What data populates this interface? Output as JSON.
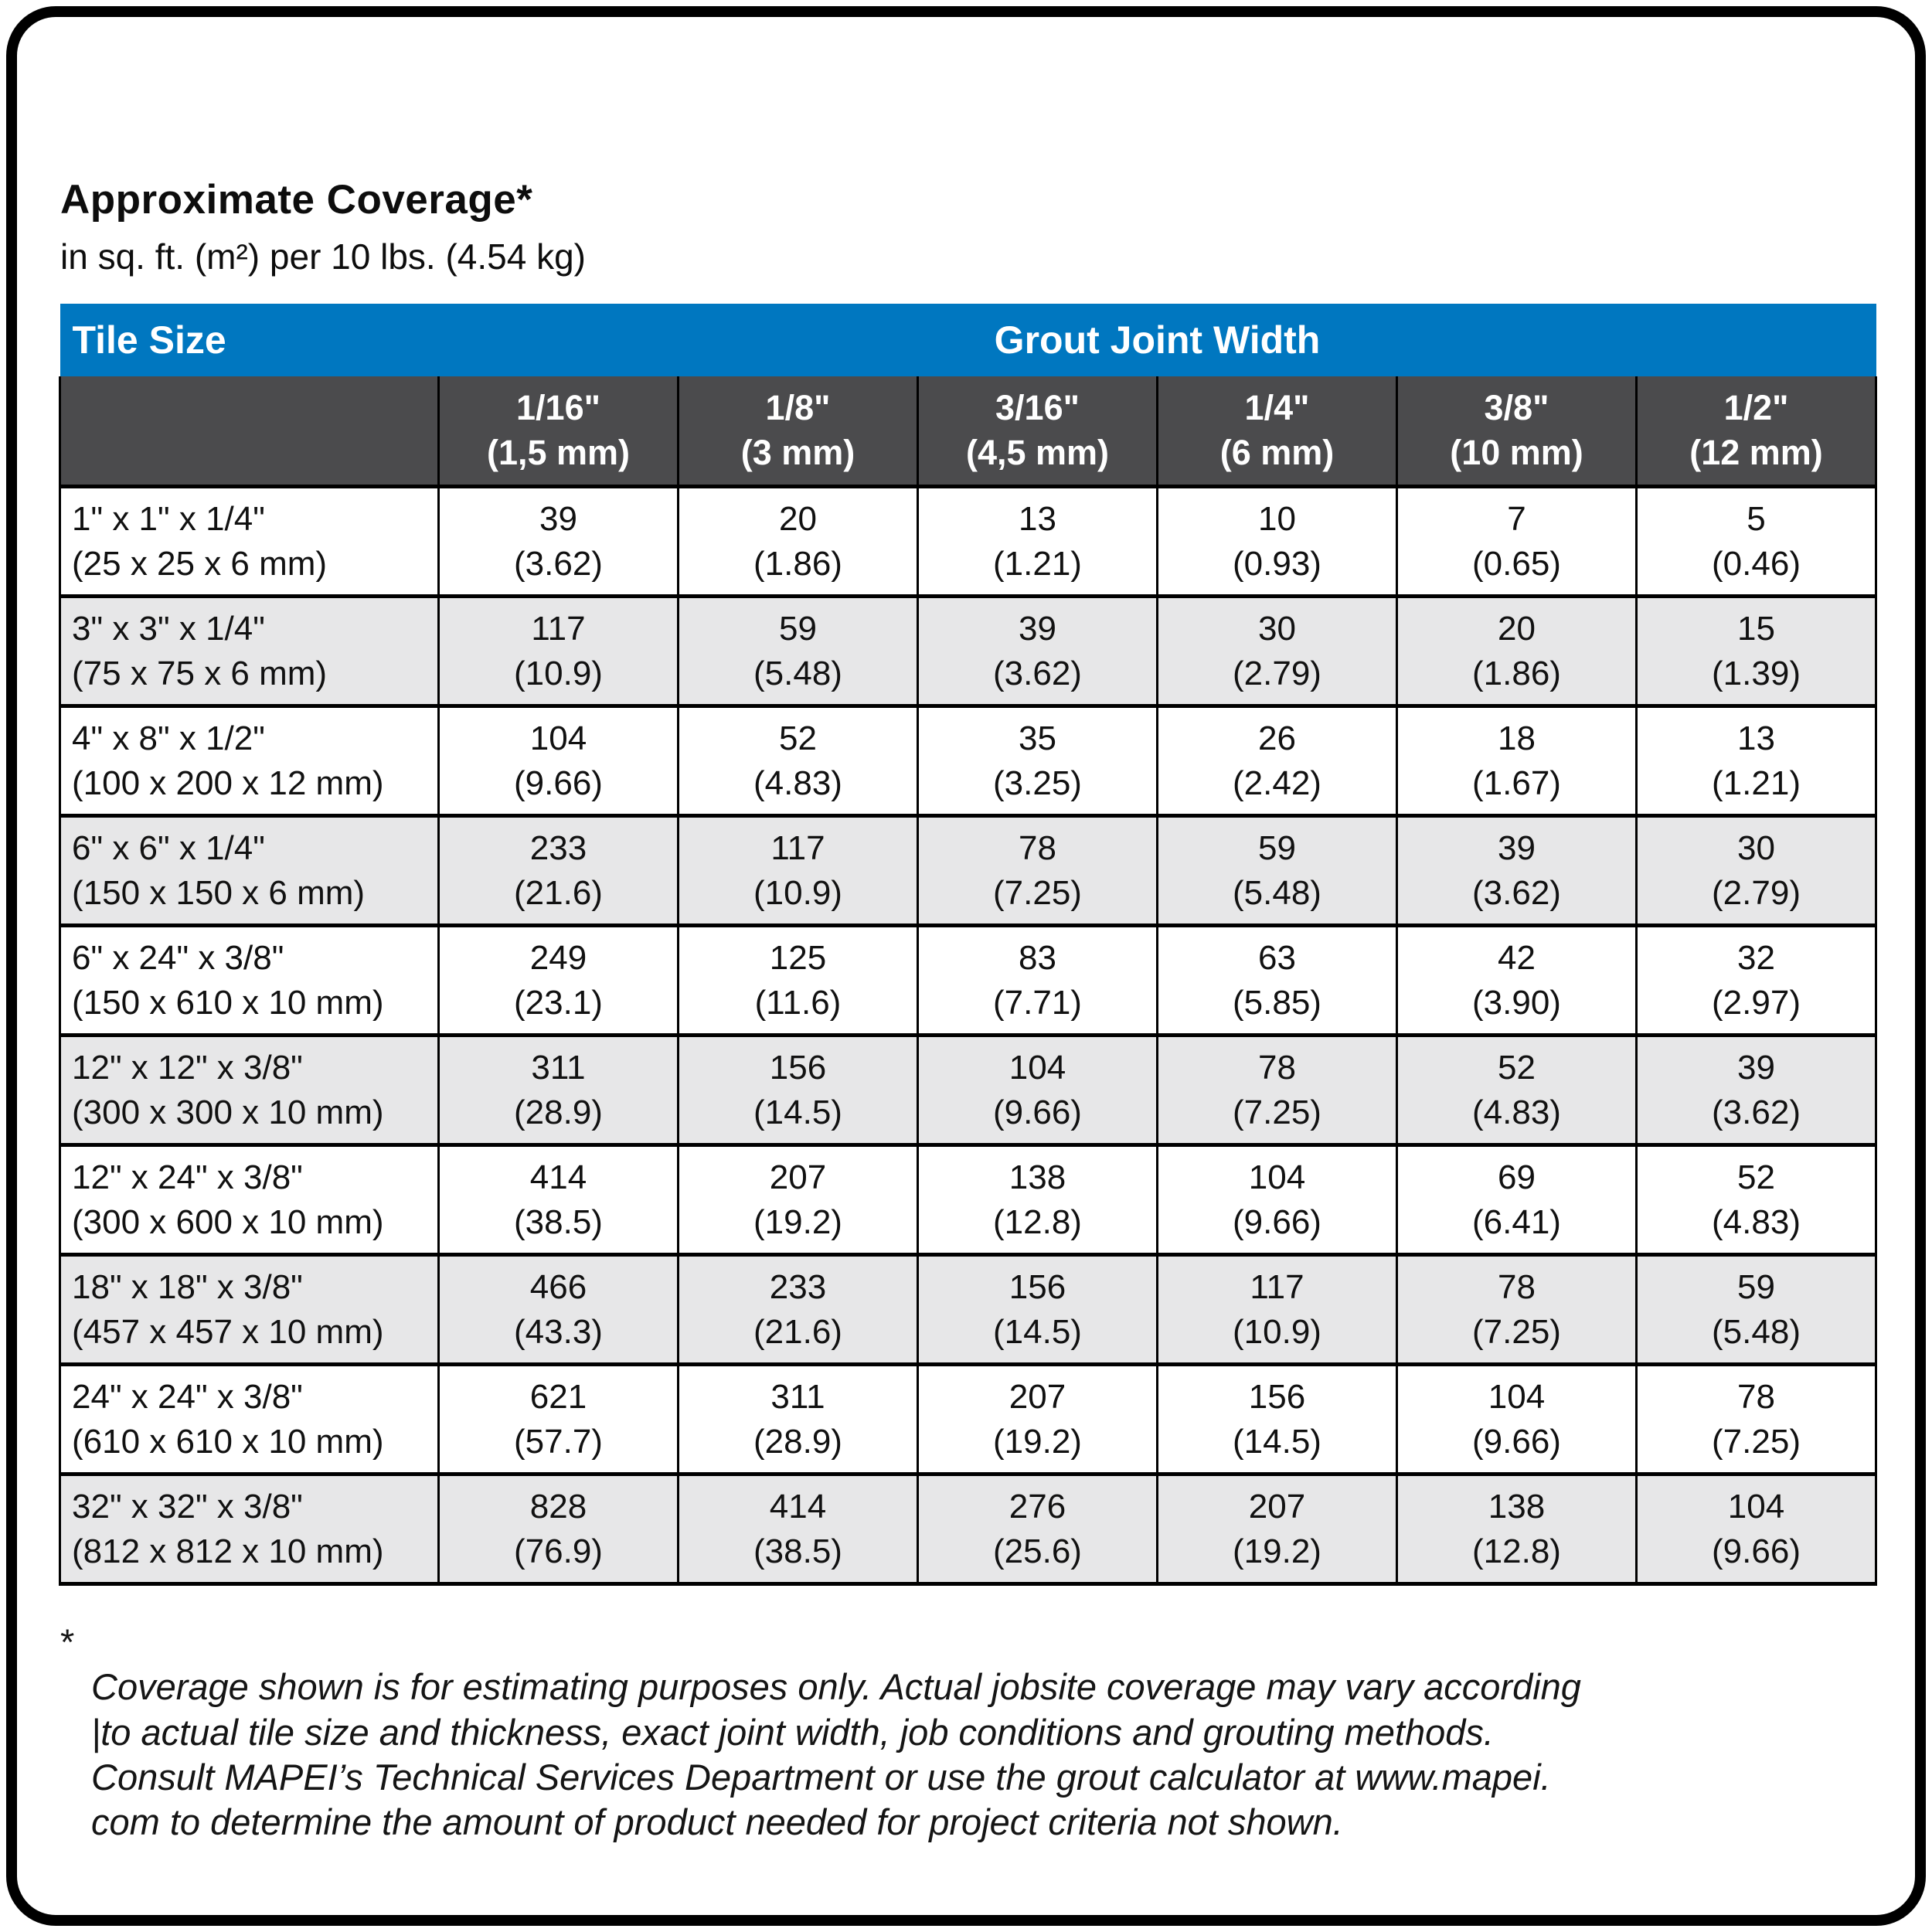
{
  "page": {
    "title": "Approximate Coverage*",
    "subtitle": "in sq. ft. (m²) per 10 lbs. (4.54 kg)"
  },
  "colors": {
    "header_blue": "#0077c0",
    "subheader_gray": "#4b4b4d",
    "row_alt_gray": "#e7e7e8",
    "border_black": "#000000"
  },
  "table": {
    "corner_header": "Tile Size",
    "group_header": "Grout Joint Width",
    "columns": [
      {
        "size": "1/16\"",
        "metric": "(1,5 mm)"
      },
      {
        "size": "1/8\"",
        "metric": "(3 mm)"
      },
      {
        "size": "3/16\"",
        "metric": "(4,5 mm)"
      },
      {
        "size": "1/4\"",
        "metric": "(6 mm)"
      },
      {
        "size": "3/8\"",
        "metric": "(10 mm)"
      },
      {
        "size": "1/2\"",
        "metric": "(12 mm)"
      }
    ],
    "rows": [
      {
        "tile": "1\" x 1\" x 1/4\"",
        "tile_metric": "(25 x 25 x 6 mm)",
        "values": [
          [
            "39",
            "(3.62)"
          ],
          [
            "20",
            "(1.86)"
          ],
          [
            "13",
            "(1.21)"
          ],
          [
            "10",
            "(0.93)"
          ],
          [
            "7",
            "(0.65)"
          ],
          [
            "5",
            "(0.46)"
          ]
        ]
      },
      {
        "tile": "3\" x 3\" x 1/4\"",
        "tile_metric": "(75 x 75 x 6 mm)",
        "values": [
          [
            "117",
            "(10.9)"
          ],
          [
            "59",
            "(5.48)"
          ],
          [
            "39",
            "(3.62)"
          ],
          [
            "30",
            "(2.79)"
          ],
          [
            "20",
            "(1.86)"
          ],
          [
            "15",
            "(1.39)"
          ]
        ]
      },
      {
        "tile": "4\" x 8\" x 1/2\"",
        "tile_metric": "(100 x 200 x 12 mm)",
        "values": [
          [
            "104",
            "(9.66)"
          ],
          [
            "52",
            "(4.83)"
          ],
          [
            "35",
            "(3.25)"
          ],
          [
            "26",
            "(2.42)"
          ],
          [
            "18",
            "(1.67)"
          ],
          [
            "13",
            "(1.21)"
          ]
        ]
      },
      {
        "tile": "6\" x 6\" x 1/4\"",
        "tile_metric": "(150 x 150 x 6 mm)",
        "values": [
          [
            "233",
            "(21.6)"
          ],
          [
            "117",
            "(10.9)"
          ],
          [
            "78",
            "(7.25)"
          ],
          [
            "59",
            "(5.48)"
          ],
          [
            "39",
            "(3.62)"
          ],
          [
            "30",
            "(2.79)"
          ]
        ]
      },
      {
        "tile": "6\" x 24\" x 3/8\"",
        "tile_metric": "(150 x 610 x 10 mm)",
        "values": [
          [
            "249",
            "(23.1)"
          ],
          [
            "125",
            "(11.6)"
          ],
          [
            "83",
            "(7.71)"
          ],
          [
            "63",
            "(5.85)"
          ],
          [
            "42",
            "(3.90)"
          ],
          [
            "32",
            "(2.97)"
          ]
        ]
      },
      {
        "tile": "12\" x 12\" x 3/8\"",
        "tile_metric": "(300 x 300 x 10 mm)",
        "values": [
          [
            "311",
            "(28.9)"
          ],
          [
            "156",
            "(14.5)"
          ],
          [
            "104",
            "(9.66)"
          ],
          [
            "78",
            "(7.25)"
          ],
          [
            "52",
            "(4.83)"
          ],
          [
            "39",
            "(3.62)"
          ]
        ]
      },
      {
        "tile": "12\" x 24\" x 3/8\"",
        "tile_metric": "(300 x 600 x 10 mm)",
        "values": [
          [
            "414",
            "(38.5)"
          ],
          [
            "207",
            "(19.2)"
          ],
          [
            "138",
            "(12.8)"
          ],
          [
            "104",
            "(9.66)"
          ],
          [
            "69",
            "(6.41)"
          ],
          [
            "52",
            "(4.83)"
          ]
        ]
      },
      {
        "tile": "18\" x 18\" x 3/8\"",
        "tile_metric": "(457 x 457 x 10 mm)",
        "values": [
          [
            "466",
            "(43.3)"
          ],
          [
            "233",
            "(21.6)"
          ],
          [
            "156",
            "(14.5)"
          ],
          [
            "117",
            "(10.9)"
          ],
          [
            "78",
            "(7.25)"
          ],
          [
            "59",
            "(5.48)"
          ]
        ]
      },
      {
        "tile": "24\" x 24\" x 3/8\"",
        "tile_metric": "(610 x 610 x 10 mm)",
        "values": [
          [
            "621",
            "(57.7)"
          ],
          [
            "311",
            "(28.9)"
          ],
          [
            "207",
            "(19.2)"
          ],
          [
            "156",
            "(14.5)"
          ],
          [
            "104",
            "(9.66)"
          ],
          [
            "78",
            "(7.25)"
          ]
        ]
      },
      {
        "tile": "32\" x 32\" x 3/8\"",
        "tile_metric": "(812 x 812 x 10 mm)",
        "values": [
          [
            "828",
            "(76.9)"
          ],
          [
            "414",
            "(38.5)"
          ],
          [
            "276",
            "(25.6)"
          ],
          [
            "207",
            "(19.2)"
          ],
          [
            "138",
            "(12.8)"
          ],
          [
            "104",
            "(9.66)"
          ]
        ]
      }
    ]
  },
  "footnote": {
    "star": "*",
    "text": "Coverage shown is for estimating purposes only. Actual jobsite coverage may vary according\n|to actual tile size and thickness, exact joint width, job conditions and grouting methods.\nConsult MAPEI’s Technical Services Department or use the grout calculator at www.mapei.\ncom to determine the amount of product needed for project criteria not shown."
  }
}
